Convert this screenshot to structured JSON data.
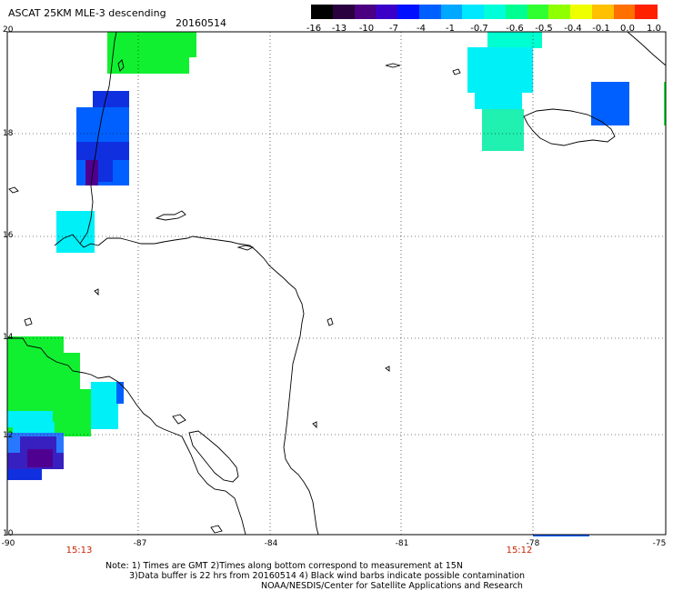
{
  "header": {
    "title": "ASCAT 25KM MLE-3 descending",
    "date": "20160514"
  },
  "colorbar": {
    "ticks": [
      "-16",
      "-13",
      "-10",
      "-7",
      "-4",
      "-1",
      "-0.7",
      "-0.6",
      "-0.5",
      "-0.4",
      "-0.1",
      "0.0",
      "1.0"
    ],
    "colors": [
      "#000000",
      "#2a0040",
      "#4b0082",
      "#3a00c8",
      "#0010ff",
      "#0060ff",
      "#00a8ff",
      "#00e8ff",
      "#00ffd8",
      "#00ff90",
      "#30ff30",
      "#90ff00",
      "#f0ff00",
      "#ffc000",
      "#ff7000",
      "#ff2000"
    ]
  },
  "map": {
    "lat_labels": [
      "20",
      "18",
      "16",
      "14",
      "12",
      "10"
    ],
    "lon_labels": [
      "-90",
      "-87",
      "-84",
      "-81",
      "-78",
      "-75"
    ],
    "pass_times": [
      "15:13",
      "15:12"
    ],
    "cell_colors": {
      "green": "#10f030",
      "cyan": "#00f0f8",
      "aqua": "#00ffd0",
      "teal": "#20f0b0",
      "blue": "#0060ff",
      "medblue": "#2878ff",
      "dark": "#1030e0",
      "indigo": "#3820c0",
      "violet": "#500090"
    }
  },
  "notes": {
    "line1": "Note: 1) Times are GMT 2)Times along bottom correspond to measurement at 15N",
    "line2": "3)Data buffer is 22 hrs from 20160514 4) Black wind barbs indicate possible contamination",
    "line3": "NOAA/NESDIS/Center for Satellite Applications and Research"
  }
}
